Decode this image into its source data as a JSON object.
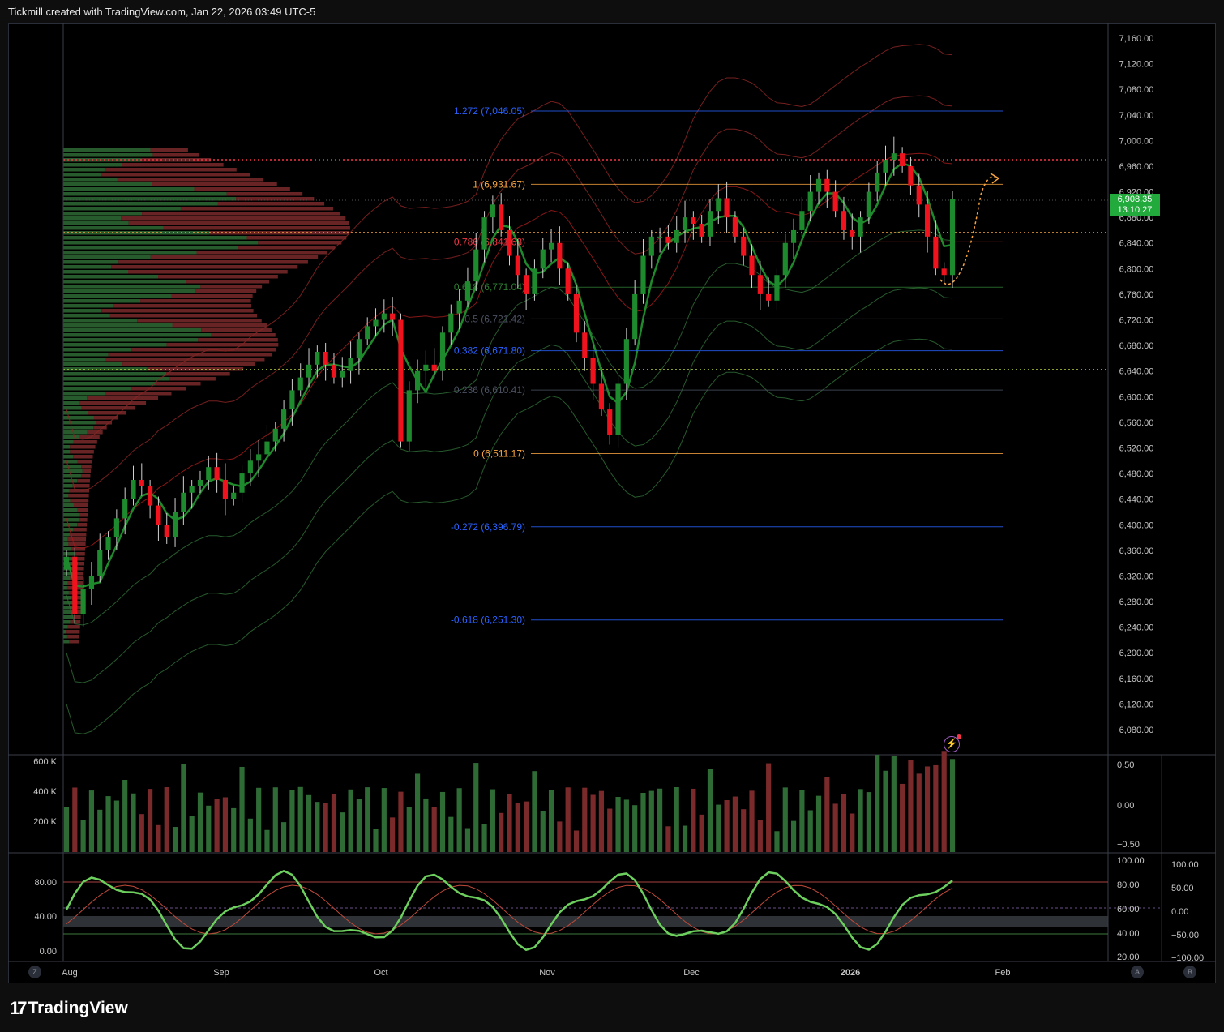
{
  "header": {
    "text": "Tickmill created with TradingView.com, Jan 22, 2026 03:49 UTC-5"
  },
  "footer": {
    "brand": "TradingView",
    "logo_icon": "tradingview-logo-icon"
  },
  "colors": {
    "up": "#1e8a2e",
    "down": "#f0131e",
    "background": "#000000",
    "price_label": "#22ab3c",
    "fib_orange": "#f7a440",
    "fib_blue": "#2962ff",
    "fib_red": "#f23645",
    "fib_green": "#2e7d32"
  },
  "price_axis": {
    "ticks": [
      "7,160.00",
      "7,120.00",
      "7,080.00",
      "7,040.00",
      "7,000.00",
      "6,960.00",
      "6,920.00",
      "6,880.00",
      "6,840.00",
      "6,800.00",
      "6,760.00",
      "6,720.00",
      "6,680.00",
      "6,640.00",
      "6,600.00",
      "6,560.00",
      "6,520.00",
      "6,480.00",
      "6,440.00",
      "6,400.00",
      "6,360.00",
      "6,320.00",
      "6,280.00",
      "6,240.00",
      "6,200.00",
      "6,160.00",
      "6,120.00",
      "6,080.00"
    ],
    "last_price": "6,908.35",
    "countdown": "13:10:27"
  },
  "time_axis": {
    "labels": [
      "Aug",
      "Sep",
      "Oct",
      "Nov",
      "Dec",
      "2026",
      "Feb"
    ]
  },
  "fib_levels": [
    {
      "label": "1.272 (7,046.05)",
      "price": 7046.05
    },
    {
      "label": "1 (6,931.67)",
      "price": 6931.67
    },
    {
      "label": "0.786 (6,841.68)",
      "price": 6841.68
    },
    {
      "label": "0.618 (6,771.04)",
      "price": 6771.04
    },
    {
      "label": "0.5 (6,721.42)",
      "price": 6721.42
    },
    {
      "label": "0.382 (6,671.80)",
      "price": 6671.8
    },
    {
      "label": "0.236 (6,610.41)",
      "price": 6610.41
    },
    {
      "label": "0 (6,511.17)",
      "price": 6511.17
    },
    {
      "label": "-0.272 (6,396.79)",
      "price": 6396.79
    },
    {
      "label": "-0.618 (6,251.30)",
      "price": 6251.3
    }
  ],
  "volume_pane": {
    "left_ticks": [
      "600 K",
      "400 K",
      "200 K"
    ],
    "right_ticks": [
      "0.50",
      "0.00",
      "−0.50"
    ]
  },
  "oscillator_pane": {
    "left_ticks": [
      "80.00",
      "40.00",
      "0.00"
    ],
    "right_ticks_a": [
      "100.00",
      "80.00",
      "60.00",
      "40.00",
      "20.00"
    ],
    "right_ticks_b": [
      "100.00",
      "50.00",
      "0.00",
      "−50.00",
      "−100.00"
    ]
  },
  "corner_buttons": {
    "left": "Z",
    "right_a": "A",
    "right_b": "B"
  },
  "chart_data": {
    "type": "candlestick",
    "ylim": [
      6060,
      7180
    ],
    "closes": [
      6350,
      6260,
      6300,
      6320,
      6360,
      6380,
      6410,
      6440,
      6470,
      6460,
      6430,
      6400,
      6380,
      6420,
      6450,
      6460,
      6470,
      6490,
      6470,
      6440,
      6450,
      6480,
      6500,
      6510,
      6530,
      6550,
      6580,
      6610,
      6630,
      6650,
      6670,
      6650,
      6630,
      6640,
      6660,
      6690,
      6710,
      6720,
      6730,
      6720,
      6530,
      6610,
      6640,
      6650,
      6640,
      6700,
      6730,
      6750,
      6780,
      6830,
      6880,
      6900,
      6860,
      6820,
      6790,
      6760,
      6800,
      6830,
      6840,
      6800,
      6760,
      6700,
      6660,
      6620,
      6580,
      6540,
      6620,
      6690,
      6760,
      6820,
      6850,
      6850,
      6840,
      6860,
      6880,
      6870,
      6850,
      6890,
      6910,
      6880,
      6850,
      6820,
      6790,
      6760,
      6750,
      6790,
      6840,
      6860,
      6890,
      6920,
      6940,
      6920,
      6890,
      6860,
      6850,
      6880,
      6920,
      6950,
      6970,
      6980,
      6960,
      6930,
      6900,
      6850,
      6800,
      6790,
      6908
    ]
  }
}
